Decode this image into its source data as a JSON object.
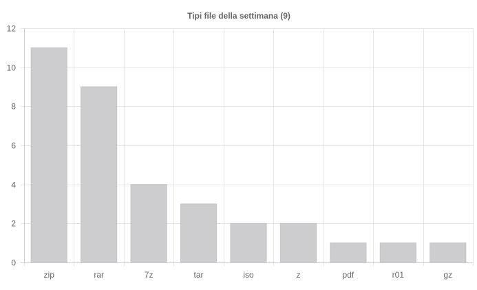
{
  "chart_data": {
    "type": "bar",
    "title": "Tipi file della settimana (9)",
    "categories": [
      "zip",
      "rar",
      "7z",
      "tar",
      "iso",
      "z",
      "pdf",
      "r01",
      "gz"
    ],
    "values": [
      11,
      9,
      4,
      3,
      2,
      2,
      1,
      1,
      1
    ],
    "ylim": [
      0,
      12
    ],
    "yticks": [
      0,
      2,
      4,
      6,
      8,
      10,
      12
    ],
    "xlabel": "",
    "ylabel": "",
    "grid": true,
    "legend": "none",
    "bar_color": "#cdcdcf",
    "bar_border_color": "#c4c4c6"
  }
}
